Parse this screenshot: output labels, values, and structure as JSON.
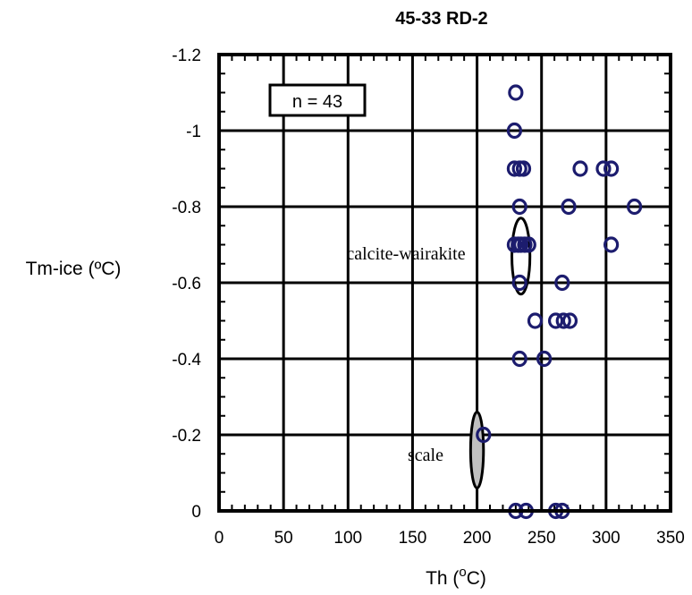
{
  "chart_data": {
    "type": "scatter",
    "title": "45-33 RD-2",
    "xlabel": {
      "prefix": "Th (",
      "sup": "o",
      "suffix": "C)"
    },
    "ylabel": "Tm-ice (ºC)",
    "xlim": [
      0,
      350
    ],
    "ylim": [
      0,
      -1.2
    ],
    "y_axis_reversed": true,
    "grid": true,
    "x_ticks": [
      0,
      50,
      100,
      150,
      200,
      250,
      300,
      350
    ],
    "x_tick_labels": [
      "0",
      "50",
      "100",
      "150",
      "200",
      "250",
      "300",
      "350"
    ],
    "y_ticks": [
      0,
      -0.2,
      -0.4,
      -0.6,
      -0.8,
      -1,
      -1.2
    ],
    "y_tick_labels": [
      "0",
      "-0.2",
      "-0.4",
      "-0.6",
      "-0.8",
      "-1",
      "-1.2"
    ],
    "marker": "open-circle",
    "marker_color": "#1c1c6e",
    "points": [
      {
        "x": 230,
        "y": -1.1
      },
      {
        "x": 229,
        "y": -1.0
      },
      {
        "x": 229,
        "y": -0.9
      },
      {
        "x": 233,
        "y": -0.9
      },
      {
        "x": 236,
        "y": -0.9
      },
      {
        "x": 280,
        "y": -0.9
      },
      {
        "x": 298,
        "y": -0.9
      },
      {
        "x": 304,
        "y": -0.9
      },
      {
        "x": 233,
        "y": -0.8
      },
      {
        "x": 271,
        "y": -0.8
      },
      {
        "x": 322,
        "y": -0.8
      },
      {
        "x": 229,
        "y": -0.7
      },
      {
        "x": 232,
        "y": -0.7
      },
      {
        "x": 234,
        "y": -0.7
      },
      {
        "x": 237,
        "y": -0.7
      },
      {
        "x": 240,
        "y": -0.7
      },
      {
        "x": 304,
        "y": -0.7
      },
      {
        "x": 233,
        "y": -0.6
      },
      {
        "x": 266,
        "y": -0.6
      },
      {
        "x": 245,
        "y": -0.5
      },
      {
        "x": 261,
        "y": -0.5
      },
      {
        "x": 267,
        "y": -0.5
      },
      {
        "x": 272,
        "y": -0.5
      },
      {
        "x": 233,
        "y": -0.4
      },
      {
        "x": 252,
        "y": -0.4
      },
      {
        "x": 205,
        "y": -0.2
      },
      {
        "x": 230,
        "y": 0
      },
      {
        "x": 238,
        "y": 0
      },
      {
        "x": 261,
        "y": 0
      },
      {
        "x": 266,
        "y": 0
      }
    ],
    "annotations": {
      "n_box": "n = 43",
      "calcite_label": "calcite-wairakite",
      "scale_label": "scale"
    },
    "ellipses": [
      {
        "name": "calcite-wairakite",
        "cx": 234,
        "cy": -0.67,
        "rx": 7,
        "ry": 0.1,
        "fill": "none"
      },
      {
        "name": "scale",
        "cx": 200,
        "cy": -0.16,
        "rx": 5,
        "ry": 0.1,
        "fill": "#c0c0c0"
      }
    ]
  }
}
